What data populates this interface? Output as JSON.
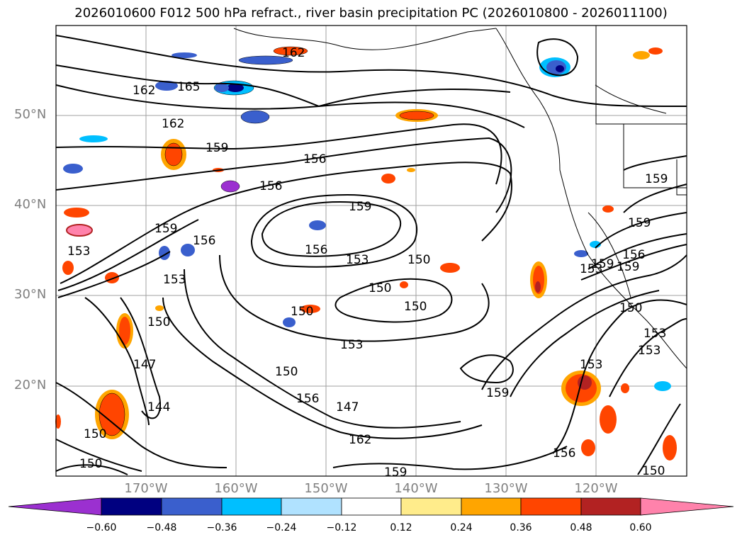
{
  "title": "2026010600 F012 500 hPa refract., river basin precipitation PC (2026010800 - 2026011100)",
  "lat_labels": [
    "50°N",
    "40°N",
    "30°N",
    "20°N"
  ],
  "lon_labels": [
    "170°W",
    "160°W",
    "150°W",
    "140°W",
    "130°W",
    "120°W"
  ],
  "colorbar": {
    "colors": [
      "#9b30d0",
      "#000080",
      "#3a5fcd",
      "#00bfff",
      "#b0e2ff",
      "#ffffff",
      "#ffec8b",
      "#ffa500",
      "#ff4500",
      "#b22222",
      "#ff82ab"
    ],
    "ticks": [
      "−0.60",
      "−0.48",
      "−0.36",
      "−0.24",
      "−0.12",
      "0.12",
      "0.24",
      "0.36",
      "0.48",
      "0.60"
    ]
  },
  "contour_labels": [
    "162",
    "165",
    "162",
    "162",
    "159",
    "156",
    "156",
    "159",
    "153",
    "159",
    "156",
    "156",
    "153",
    "150",
    "150",
    "150",
    "150",
    "153",
    "153",
    "150",
    "153",
    "150",
    "147",
    "144",
    "150",
    "156",
    "147",
    "162",
    "159",
    "159",
    "153",
    "156",
    "150",
    "153",
    "159",
    "159",
    "159",
    "156",
    "159",
    "150",
    "153",
    "150"
  ]
}
